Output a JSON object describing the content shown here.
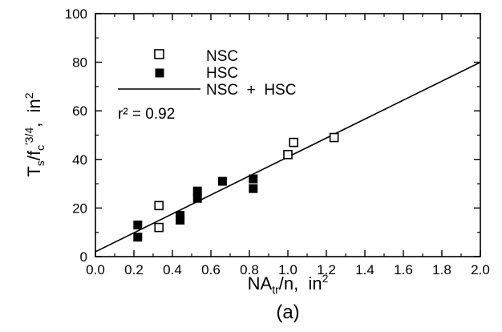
{
  "chart_data": {
    "type": "scatter",
    "panel_label": "(a)",
    "xlabel": {
      "main": "NA",
      "sub": "tr",
      "rest": "/n,  in",
      "sup": "2"
    },
    "ylabel": {
      "main": "T",
      "sub1": "s",
      "mid": "/f",
      "sub2": "c",
      "sup1": "′3/4",
      "rest": ",  in",
      "sup2": "2"
    },
    "xlim": [
      0.0,
      2.0
    ],
    "ylim": [
      0,
      100
    ],
    "x_ticks": [
      "0.0",
      "0.2",
      "0.4",
      "0.6",
      "0.8",
      "1.0",
      "1.2",
      "1.4",
      "1.6",
      "1.8",
      "2.0"
    ],
    "y_ticks": [
      "0",
      "20",
      "40",
      "60",
      "80",
      "100"
    ],
    "grid": false,
    "legend": {
      "placement": "top-left",
      "entries": [
        {
          "label": "NSC",
          "marker": "open-square"
        },
        {
          "label": "HSC",
          "marker": "filled-square"
        },
        {
          "label": "NSC  +  HSC",
          "marker": "line"
        }
      ],
      "r2_text": "r² = 0.92"
    },
    "series": [
      {
        "name": "NSC",
        "marker": "open-square",
        "points": [
          [
            0.33,
            21
          ],
          [
            0.33,
            12
          ],
          [
            1.0,
            42
          ],
          [
            1.03,
            47
          ],
          [
            1.24,
            49
          ]
        ]
      },
      {
        "name": "HSC",
        "marker": "filled-square",
        "points": [
          [
            0.22,
            13
          ],
          [
            0.22,
            8
          ],
          [
            0.44,
            17
          ],
          [
            0.44,
            15
          ],
          [
            0.53,
            27
          ],
          [
            0.53,
            24
          ],
          [
            0.66,
            31
          ],
          [
            0.82,
            32
          ],
          [
            0.82,
            28
          ]
        ]
      }
    ],
    "fit_line": {
      "name": "NSC  +  HSC",
      "x": [
        0.0,
        2.0
      ],
      "y": [
        2,
        80
      ]
    }
  }
}
